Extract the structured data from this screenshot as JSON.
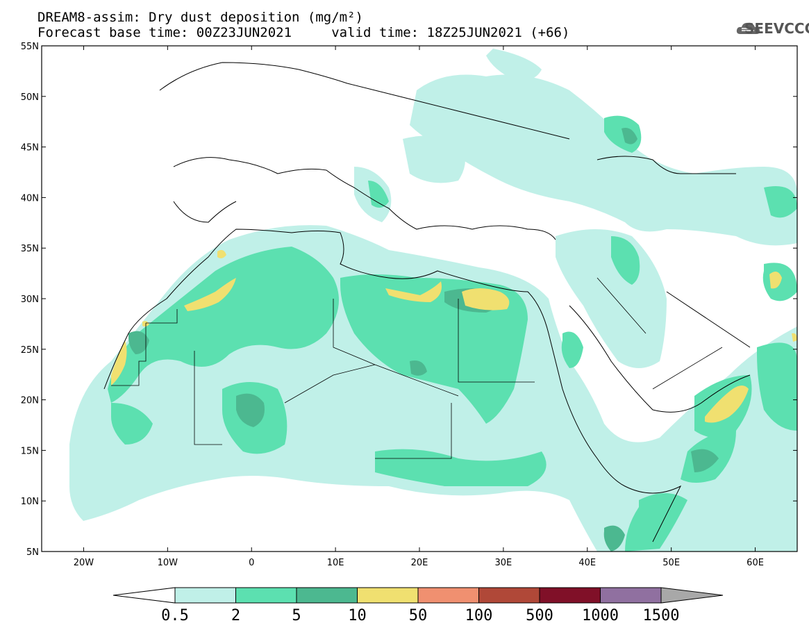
{
  "title_line1": "DREAM8-assim: Dry dust deposition (mg/m²)",
  "title_line2": "Forecast base time: 00Z23JUN2021     valid time: 18Z25JUN2021 (+66)",
  "logo_text": "SEEVCCC",
  "map": {
    "lon_range": [
      -25,
      65
    ],
    "lat_range": [
      5,
      55
    ],
    "lat_ticks": [
      "55N",
      "50N",
      "45N",
      "40N",
      "35N",
      "30N",
      "25N",
      "20N",
      "15N",
      "10N",
      "5N"
    ],
    "lat_values": [
      55,
      50,
      45,
      40,
      35,
      30,
      25,
      20,
      15,
      10,
      5
    ],
    "lon_ticks": [
      "20W",
      "10W",
      "0",
      "10E",
      "20E",
      "30E",
      "40E",
      "50E",
      "60E"
    ],
    "lon_values": [
      -20,
      -10,
      0,
      10,
      20,
      30,
      40,
      50,
      60
    ]
  },
  "colorbar": {
    "levels": [
      "0.5",
      "2",
      "5",
      "10",
      "50",
      "100",
      "500",
      "1000",
      "1500"
    ],
    "colors": [
      "#c0f0e8",
      "#5ce0b0",
      "#4cb890",
      "#f0e070",
      "#f09070",
      "#b04838",
      "#801028",
      "#9070a0"
    ],
    "under_color": "#ffffff",
    "over_color": "#a8a8a8"
  },
  "colors": {
    "light": "#c0f0e8",
    "mid": "#5ce0b0",
    "dark": "#4cb890",
    "yellow": "#f0e070",
    "border": "#000000"
  }
}
